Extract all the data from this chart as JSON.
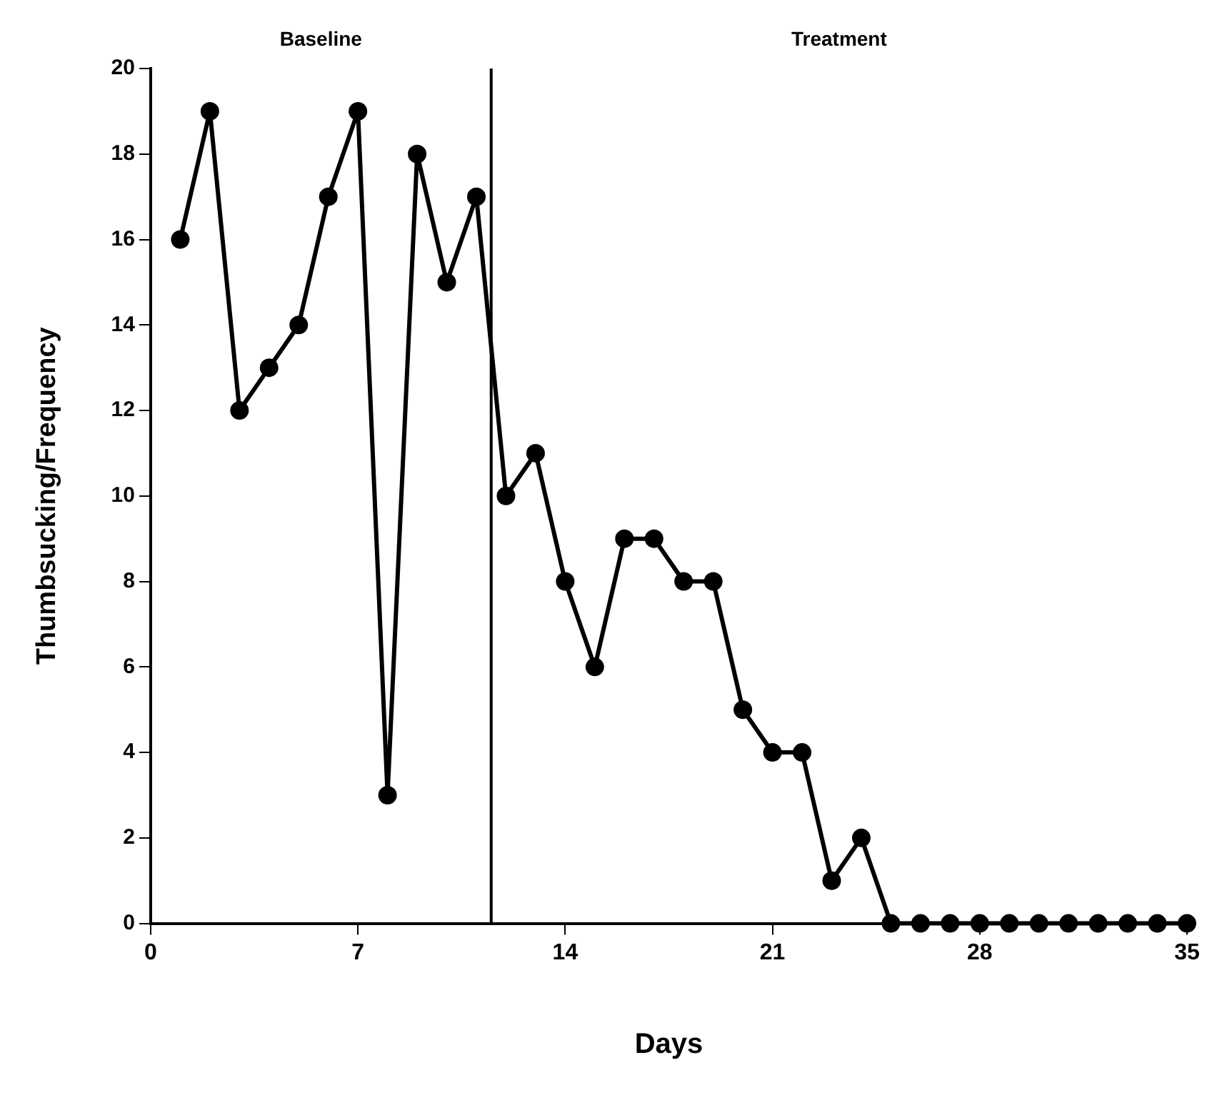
{
  "chart_data": {
    "type": "line",
    "xlabel": "Days",
    "ylabel": "Thumbsucking/Frequency",
    "x": [
      1,
      2,
      3,
      4,
      5,
      6,
      7,
      8,
      9,
      10,
      11,
      12,
      13,
      14,
      15,
      16,
      17,
      18,
      19,
      20,
      21,
      22,
      23,
      24,
      25,
      26,
      27,
      28,
      29,
      30,
      31,
      32,
      33,
      34,
      35
    ],
    "series": [
      {
        "color": "#000000",
        "values": [
          16,
          19,
          12,
          13,
          14,
          17,
          19,
          3,
          18,
          15,
          17,
          10,
          11,
          8,
          6,
          9,
          9,
          8,
          8,
          5,
          4,
          4,
          1,
          2,
          0,
          0,
          0,
          0,
          0,
          0,
          0,
          0,
          0,
          0,
          0
        ]
      }
    ],
    "xlim": [
      0,
      35
    ],
    "xticks": [
      0,
      7,
      14,
      21,
      28,
      35
    ],
    "ylim": [
      0,
      20
    ],
    "yticks": [
      0,
      2,
      4,
      6,
      8,
      10,
      12,
      14,
      16,
      18,
      20
    ],
    "ref_lines": [
      {
        "axis": "x",
        "value": 11.5,
        "color": "#000000"
      }
    ],
    "annotations": [
      "Baseline",
      "Treatment"
    ],
    "marker": "circle",
    "line_style": "solid",
    "grid": false,
    "legend": false
  }
}
